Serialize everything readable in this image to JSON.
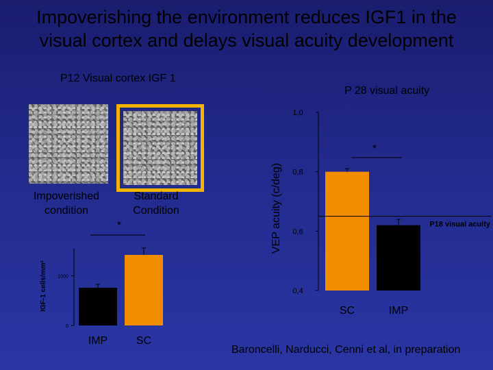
{
  "slide": {
    "title_line1": "Impoverishing the environment reduces IGF1 in the",
    "title_line2": "visual cortex and delays visual acuity development",
    "left_heading": "P12 Visual cortex IGF 1",
    "right_heading": "P 28 visual acuity",
    "label_impoverished_line1": "Impoverished",
    "label_impoverished_line2": "condition",
    "label_standard_line1": "Standard",
    "label_standard_line2": "Condition",
    "credit": "Baroncelli, Narducci, Cenni et al, in preparation",
    "colors": {
      "background": "#222a8c",
      "orange": "#f28c00",
      "black": "#000000",
      "frame": "#f4b400"
    }
  },
  "chart_data": [
    {
      "type": "bar",
      "ylabel": "IGF-1 cells/mm²",
      "ylim": [
        0,
        2000
      ],
      "yticks": [
        "0",
        "1000"
      ],
      "yticks_values": [
        0,
        1000
      ],
      "categories": [
        "IMP",
        "SC"
      ],
      "values": [
        760,
        1420
      ],
      "errors": [
        70,
        140
      ],
      "bar_colors": [
        "#000000",
        "#f28c00"
      ],
      "significance": "*"
    },
    {
      "type": "bar",
      "ylabel": "VEP acuity (c/deg)",
      "ylim": [
        0.4,
        1.0
      ],
      "yticks": [
        "0,4",
        "0,6",
        "0,8",
        "1,0"
      ],
      "yticks_values": [
        0.4,
        0.6,
        0.8,
        1.0
      ],
      "categories": [
        "SC",
        "IMP"
      ],
      "values": [
        0.8,
        0.62
      ],
      "errors": [
        0.01,
        0.02
      ],
      "bar_colors": [
        "#f28c00",
        "#000000"
      ],
      "significance": "*",
      "reference_line": {
        "value": 0.65,
        "label": "P18 visual acuity"
      }
    }
  ]
}
